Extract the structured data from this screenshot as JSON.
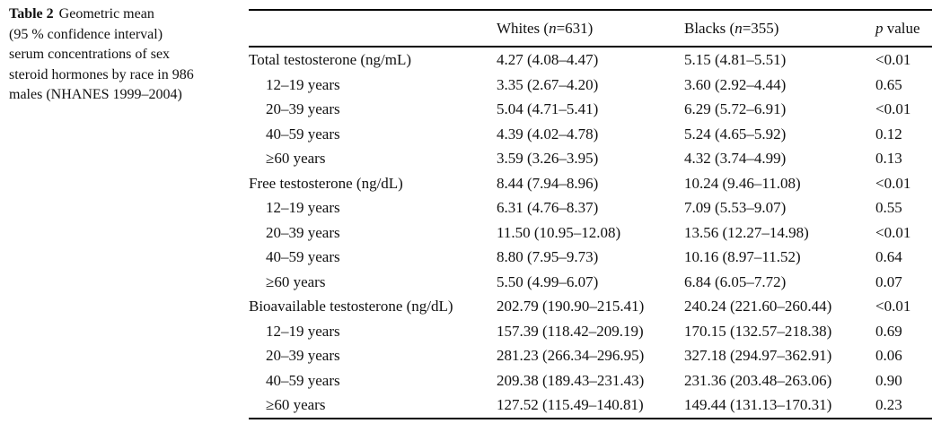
{
  "caption": {
    "label": "Table 2",
    "title_rest": "Geometric mean",
    "lines": [
      "(95 % confidence interval)",
      "serum concentrations of sex",
      "steroid hormones by race in 986",
      "males (NHANES 1999–2004)"
    ]
  },
  "table": {
    "header": {
      "whites": {
        "pre": "Whites (",
        "var": "n",
        "post": "=631)"
      },
      "blacks": {
        "pre": "Blacks (",
        "var": "n",
        "post": "=355)"
      },
      "p": {
        "var": "p",
        "post": " value"
      }
    },
    "rows": [
      {
        "label": "Total testosterone (ng/mL)",
        "indent": false,
        "whites": "4.27 (4.08–4.47)",
        "blacks": "5.15 (4.81–5.51)",
        "p": "<0.01"
      },
      {
        "label": "12–19 years",
        "indent": true,
        "whites": "3.35 (2.67–4.20)",
        "blacks": "3.60 (2.92–4.44)",
        "p": "0.65"
      },
      {
        "label": "20–39 years",
        "indent": true,
        "whites": "5.04 (4.71–5.41)",
        "blacks": "6.29 (5.72–6.91)",
        "p": "<0.01"
      },
      {
        "label": "40–59 years",
        "indent": true,
        "whites": "4.39 (4.02–4.78)",
        "blacks": "5.24 (4.65–5.92)",
        "p": "0.12"
      },
      {
        "label": "≥60 years",
        "indent": true,
        "whites": "3.59 (3.26–3.95)",
        "blacks": "4.32 (3.74–4.99)",
        "p": "0.13"
      },
      {
        "label": "Free testosterone (ng/dL)",
        "indent": false,
        "whites": "8.44 (7.94–8.96)",
        "blacks": "10.24 (9.46–11.08)",
        "p": "<0.01"
      },
      {
        "label": "12–19 years",
        "indent": true,
        "whites": "6.31 (4.76–8.37)",
        "blacks": "7.09 (5.53–9.07)",
        "p": "0.55"
      },
      {
        "label": "20–39 years",
        "indent": true,
        "whites": "11.50 (10.95–12.08)",
        "blacks": "13.56 (12.27–14.98)",
        "p": "<0.01"
      },
      {
        "label": "40–59 years",
        "indent": true,
        "whites": "8.80 (7.95–9.73)",
        "blacks": "10.16 (8.97–11.52)",
        "p": "0.64"
      },
      {
        "label": "≥60 years",
        "indent": true,
        "whites": "5.50 (4.99–6.07)",
        "blacks": "6.84 (6.05–7.72)",
        "p": "0.07"
      },
      {
        "label": "Bioavailable testosterone (ng/dL)",
        "indent": false,
        "whites": "202.79 (190.90–215.41)",
        "blacks": "240.24 (221.60–260.44)",
        "p": "<0.01"
      },
      {
        "label": "12–19 years",
        "indent": true,
        "whites": "157.39 (118.42–209.19)",
        "blacks": "170.15 (132.57–218.38)",
        "p": "0.69"
      },
      {
        "label": "20–39 years",
        "indent": true,
        "whites": "281.23 (266.34–296.95)",
        "blacks": "327.18 (294.97–362.91)",
        "p": "0.06"
      },
      {
        "label": "40–59 years",
        "indent": true,
        "whites": "209.38 (189.43–231.43)",
        "blacks": "231.36 (203.48–263.06)",
        "p": "0.90"
      },
      {
        "label": "≥60 years",
        "indent": true,
        "whites": "127.52 (115.49–140.81)",
        "blacks": "149.44 (131.13–170.31)",
        "p": "0.23"
      }
    ]
  }
}
